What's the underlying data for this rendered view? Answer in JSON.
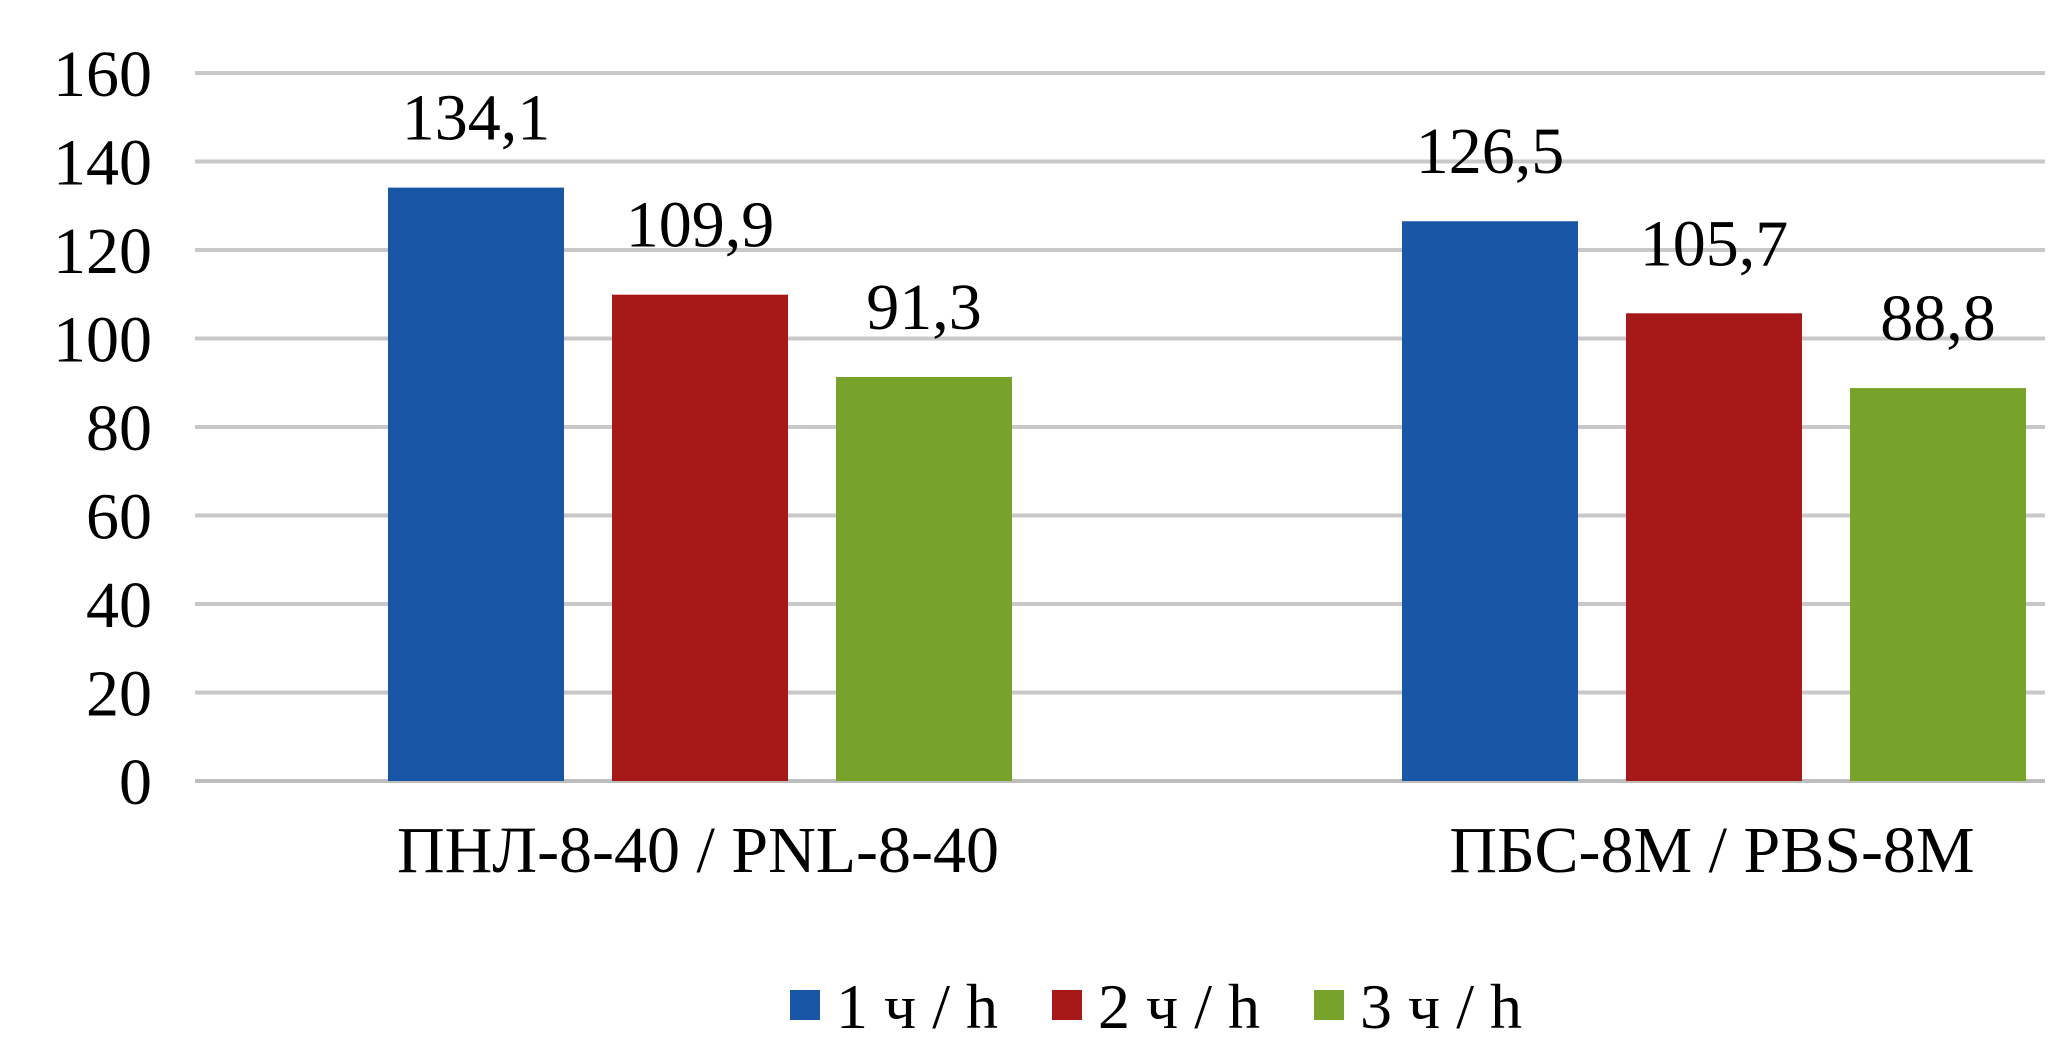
{
  "chart_data": {
    "type": "bar",
    "categories": [
      "ПНЛ-8-40 / PNL-8-40",
      "ПБС-8М / PBS-8M"
    ],
    "series": [
      {
        "name": "1 ч / h",
        "values": [
          134.1,
          126.5
        ],
        "labels": [
          "134,1",
          "126,5"
        ],
        "color": "#1a56a6"
      },
      {
        "name": "2 ч / h",
        "values": [
          109.9,
          105.7
        ],
        "labels": [
          "109,9",
          "105,7"
        ],
        "color": "#a71818"
      },
      {
        "name": "3 ч / h",
        "values": [
          91.3,
          88.8
        ],
        "labels": [
          "91,3",
          "88,8"
        ],
        "color": "#78a32a"
      }
    ],
    "ylim": [
      0,
      160
    ],
    "yticks": [
      "0",
      "20",
      "40",
      "60",
      "80",
      "100",
      "120",
      "140",
      "160"
    ],
    "grid": true,
    "legend_position": "bottom"
  }
}
